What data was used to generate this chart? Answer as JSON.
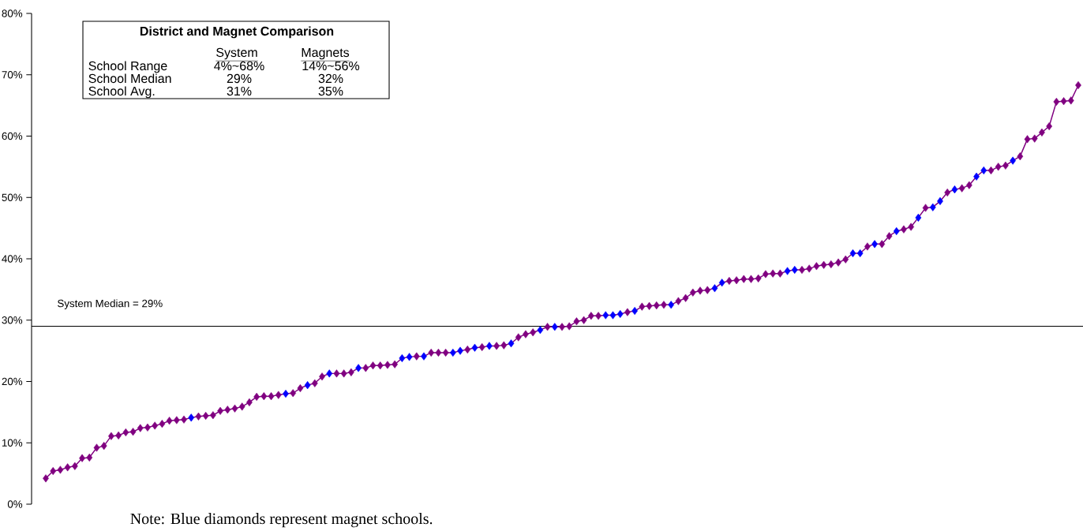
{
  "chart_data": {
    "type": "line",
    "categories": [
      null,
      null,
      null,
      null,
      null,
      null,
      null,
      null,
      null,
      null,
      null,
      null,
      null,
      null,
      null,
      null,
      null,
      null,
      null,
      null,
      null,
      null,
      null,
      null,
      null,
      null,
      null,
      null,
      null,
      null,
      null,
      null,
      null,
      null,
      null,
      null,
      null,
      null,
      null,
      null,
      null,
      null,
      null,
      null,
      null,
      null,
      null,
      null,
      null,
      null,
      null,
      null,
      null,
      null,
      null,
      null,
      null,
      null,
      null,
      null,
      null,
      null,
      null,
      null,
      null,
      null,
      null,
      null,
      null,
      null,
      null,
      null,
      null,
      null,
      null,
      null,
      null,
      null,
      null,
      null,
      null,
      null,
      null,
      null,
      null,
      null,
      null,
      null,
      null,
      null,
      null,
      null,
      null,
      null,
      null,
      null,
      null,
      null,
      null,
      null,
      null,
      null,
      null,
      null,
      null,
      null,
      null,
      null,
      null,
      null,
      null,
      null,
      null,
      null,
      null,
      null,
      null,
      null,
      null,
      null,
      null,
      null,
      null,
      null,
      null,
      null,
      null,
      null,
      null,
      null,
      null,
      null,
      null,
      null,
      null,
      null,
      null,
      null,
      null,
      null,
      null,
      null,
      null
    ],
    "series": [
      {
        "color": "#800080",
        "values": [
          4.2,
          5.4,
          5.6,
          6.0,
          6.2,
          7.5,
          7.6,
          9.2,
          9.5,
          11.1,
          11.2,
          11.7,
          11.8,
          12.4,
          12.5,
          12.8,
          13.1,
          13.6,
          13.7,
          13.8,
          14.1,
          14.3,
          14.4,
          14.5,
          15.2,
          15.4,
          15.6,
          15.9,
          16.6,
          17.5,
          17.6,
          17.6,
          17.8,
          18.0,
          18.1,
          18.9,
          19.4,
          19.7,
          20.8,
          21.3,
          21.3,
          21.3,
          21.5,
          22.2,
          22.2,
          22.6,
          22.6,
          22.7,
          22.8,
          23.8,
          24.0,
          24.1,
          24.1,
          24.7,
          24.7,
          24.7,
          24.7,
          25.0,
          25.2,
          25.5,
          25.6,
          25.8,
          25.8,
          25.9,
          26.2,
          27.2,
          27.7,
          28.0,
          28.4,
          28.9,
          28.9,
          28.9,
          29.0,
          29.8,
          30.0,
          30.7,
          30.7,
          30.8,
          30.8,
          31.0,
          31.3,
          31.5,
          32.2,
          32.3,
          32.4,
          32.5,
          32.5,
          33.1,
          33.6,
          34.5,
          34.8,
          34.9,
          35.2,
          36.1,
          36.4,
          36.5,
          36.7,
          36.7,
          36.8,
          37.5,
          37.6,
          37.6,
          38.0,
          38.2,
          38.2,
          38.4,
          38.8,
          39.0,
          39.1,
          39.4,
          39.9,
          40.9,
          40.9,
          42.0,
          42.4,
          42.4,
          43.7,
          44.5,
          44.8,
          45.2,
          46.7,
          48.3,
          48.4,
          49.4,
          50.8,
          51.3,
          51.5,
          52.0,
          53.4,
          54.4,
          54.4,
          55.0,
          55.2,
          56.0,
          56.7,
          59.5,
          59.6,
          60.6,
          61.6,
          65.6,
          65.7,
          65.8,
          68.3
        ],
        "colors": [
          "#800080",
          "#800080",
          "#800080",
          "#800080",
          "#800080",
          "#800080",
          "#800080",
          "#800080",
          "#800080",
          "#800080",
          "#800080",
          "#800080",
          "#800080",
          "#800080",
          "#800080",
          "#800080",
          "#800080",
          "#800080",
          "#800080",
          "#800080",
          "#0000ff",
          "#800080",
          "#800080",
          "#800080",
          "#800080",
          "#800080",
          "#800080",
          "#800080",
          "#800080",
          "#800080",
          "#800080",
          "#800080",
          "#800080",
          "#0000ff",
          "#800080",
          "#800080",
          "#0000ff",
          "#800080",
          "#800080",
          "#0000ff",
          "#800080",
          "#800080",
          "#800080",
          "#0000ff",
          "#800080",
          "#800080",
          "#800080",
          "#800080",
          "#800080",
          "#0000ff",
          "#0000ff",
          "#800080",
          "#0000ff",
          "#800080",
          "#800080",
          "#800080",
          "#0000ff",
          "#0000ff",
          "#800080",
          "#0000ff",
          "#800080",
          "#0000ff",
          "#800080",
          "#800080",
          "#0000ff",
          "#800080",
          "#800080",
          "#800080",
          "#0000ff",
          "#800080",
          "#0000ff",
          "#800080",
          "#800080",
          "#800080",
          "#800080",
          "#800080",
          "#800080",
          "#0000ff",
          "#0000ff",
          "#0000ff",
          "#800080",
          "#0000ff",
          "#800080",
          "#800080",
          "#800080",
          "#800080",
          "#0000ff",
          "#800080",
          "#800080",
          "#800080",
          "#800080",
          "#800080",
          "#0000ff",
          "#0000ff",
          "#800080",
          "#800080",
          "#800080",
          "#800080",
          "#800080",
          "#800080",
          "#800080",
          "#800080",
          "#0000ff",
          "#0000ff",
          "#800080",
          "#800080",
          "#800080",
          "#800080",
          "#800080",
          "#800080",
          "#800080",
          "#0000ff",
          "#0000ff",
          "#800080",
          "#0000ff",
          "#800080",
          "#800080",
          "#0000ff",
          "#800080",
          "#800080",
          "#0000ff",
          "#800080",
          "#0000ff",
          "#0000ff",
          "#800080",
          "#0000ff",
          "#800080",
          "#800080",
          "#0000ff",
          "#0000ff",
          "#800080",
          "#800080",
          "#800080",
          "#0000ff",
          "#800080",
          "#800080",
          "#800080",
          "#800080",
          "#800080",
          "#800080",
          "#800080",
          "#800080",
          "#800080"
        ]
      }
    ],
    "ylim": [
      0,
      80
    ],
    "yticks": [
      {
        "value": 0,
        "label": "0%"
      },
      {
        "value": 10,
        "label": "10%"
      },
      {
        "value": 20,
        "label": "20%"
      },
      {
        "value": 30,
        "label": "30%"
      },
      {
        "value": 40,
        "label": "40%"
      },
      {
        "value": 50,
        "label": "50%"
      },
      {
        "value": 60,
        "label": "60%"
      },
      {
        "value": 70,
        "label": "70%"
      },
      {
        "value": 80,
        "label": "80%"
      }
    ],
    "tick_labels": "y",
    "marker": "diamond",
    "line_style": "solid",
    "ref_lines": [
      {
        "axis": "y",
        "value": 29,
        "label": "System Median = 29%",
        "color": "#000000"
      }
    ],
    "annotations": [
      "District and Magnet Comparison",
      "System",
      "Magnets",
      "School Range",
      "4%~68%",
      "14%~56%",
      "School Median",
      "29%",
      "32%",
      "School Avg.",
      "31%",
      "35%",
      "Note: Blue diamonds represent magnet schools."
    ]
  }
}
